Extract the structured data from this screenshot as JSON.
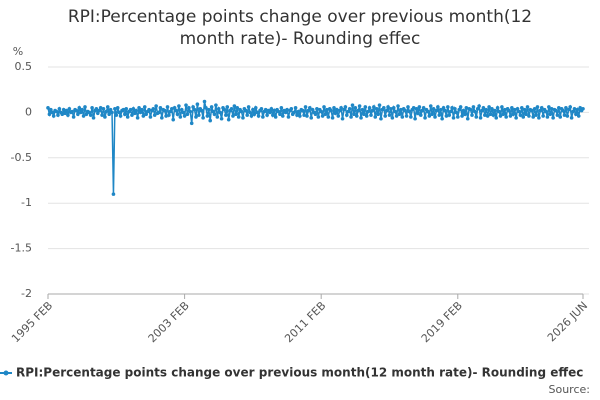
{
  "chart_data": {
    "type": "line",
    "title": "RPI:Percentage points change over previous month(12 month rate)- Rounding effec",
    "y_label": "%",
    "source": "Source:",
    "categories": [
      "1995 FEB",
      null,
      null,
      null,
      null,
      null,
      null,
      null,
      null,
      null,
      null,
      null,
      null,
      null,
      null,
      null,
      null,
      null,
      null,
      null,
      null,
      null,
      null,
      null,
      null,
      null,
      null,
      null,
      null,
      null,
      null,
      null,
      null,
      null,
      null,
      null,
      null,
      null,
      null,
      null,
      null,
      null,
      null,
      null,
      null,
      null,
      null,
      null,
      null,
      null,
      null,
      null,
      null,
      null,
      null,
      null,
      null,
      null,
      null,
      null,
      null,
      null,
      null,
      null,
      null,
      null,
      null,
      null,
      null,
      null,
      null,
      null,
      null,
      null,
      null,
      null,
      null,
      null,
      null,
      null,
      null,
      null,
      null,
      null,
      null,
      null,
      null,
      null,
      null,
      null,
      null,
      null,
      null,
      null,
      null,
      null,
      "2003 FEB",
      null,
      null,
      null,
      null,
      null,
      null,
      null,
      null,
      null,
      null,
      null,
      null,
      null,
      null,
      null,
      null,
      null,
      null,
      null,
      null,
      null,
      null,
      null,
      null,
      null,
      null,
      null,
      null,
      null,
      null,
      null,
      null,
      null,
      null,
      null,
      null,
      null,
      null,
      null,
      null,
      null,
      null,
      null,
      null,
      null,
      null,
      null,
      null,
      null,
      null,
      null,
      null,
      null,
      null,
      null,
      null,
      null,
      null,
      null,
      null,
      null,
      null,
      null,
      null,
      null,
      null,
      null,
      null,
      null,
      null,
      null,
      null,
      null,
      null,
      null,
      null,
      null,
      null,
      null,
      null,
      null,
      null,
      null,
      null,
      null,
      null,
      null,
      null,
      null,
      null,
      null,
      null,
      null,
      null,
      null,
      "2011 FEB",
      null,
      null,
      null,
      null,
      null,
      null,
      null,
      null,
      null,
      null,
      null,
      null,
      null,
      null,
      null,
      null,
      null,
      null,
      null,
      null,
      null,
      null,
      null,
      null,
      null,
      null,
      null,
      null,
      null,
      null,
      null,
      null,
      null,
      null,
      null,
      null,
      null,
      null,
      null,
      null,
      null,
      null,
      null,
      null,
      null,
      null,
      null,
      null,
      null,
      null,
      null,
      null,
      null,
      null,
      null,
      null,
      null,
      null,
      null,
      null,
      null,
      null,
      null,
      null,
      null,
      null,
      null,
      null,
      null,
      null,
      null,
      null,
      null,
      null,
      null,
      null,
      null,
      null,
      null,
      null,
      null,
      null,
      null,
      null,
      null,
      null,
      null,
      null,
      null,
      null,
      null,
      null,
      null,
      null,
      null,
      "2019 FEB",
      null,
      null,
      null,
      null,
      null,
      null,
      null,
      null,
      null,
      null,
      null,
      null,
      null,
      null,
      null,
      null,
      null,
      null,
      null,
      null,
      null,
      null,
      null,
      null,
      null,
      null,
      null,
      null,
      null,
      null,
      null,
      null,
      null,
      null,
      null,
      null,
      null,
      null,
      null,
      null,
      null,
      null,
      null,
      null,
      null,
      null,
      null,
      null,
      null,
      null,
      null,
      null,
      null,
      null,
      null,
      null,
      null,
      null,
      null,
      null,
      null,
      null,
      null,
      null,
      null,
      null,
      null,
      null,
      null,
      null,
      null,
      null,
      null,
      null,
      null,
      null,
      null,
      null,
      null,
      null,
      null,
      null,
      null,
      null,
      null,
      null,
      null,
      "2026 JUN"
    ],
    "series": [
      {
        "name": "RPI:Percentage points change over previous month(12 month rate)- Rounding effec",
        "color": "#1f87c6",
        "values": [
          0.05,
          -0.02,
          0.03,
          0,
          -0.04,
          0.02,
          0.01,
          -0.03,
          0.04,
          0,
          -0.02,
          0.03,
          -0.01,
          0.02,
          -0.03,
          0.04,
          0,
          0.01,
          -0.05,
          0.03,
          0.02,
          -0.02,
          0.05,
          0,
          0.03,
          -0.04,
          0.06,
          -0.02,
          0.01,
          0,
          -0.03,
          0.05,
          -0.06,
          0.02,
          0.04,
          -0.01,
          0.02,
          0.05,
          -0.03,
          0.04,
          -0.05,
          0.01,
          0.06,
          -0.02,
          0.03,
          0,
          -0.9,
          0.04,
          -0.03,
          0.05,
          0,
          -0.04,
          0.02,
          0.03,
          -0.02,
          0.04,
          -0.05,
          0.01,
          0.03,
          -0.03,
          0.04,
          -0.01,
          0.02,
          -0.06,
          0.05,
          0,
          0.03,
          -0.04,
          0.06,
          -0.02,
          0.01,
          0.03,
          -0.05,
          0.02,
          0.04,
          -0.03,
          0.07,
          -0.01,
          0,
          0.05,
          -0.06,
          0.03,
          0.02,
          -0.04,
          0.06,
          -0.03,
          0.01,
          0.04,
          -0.08,
          0.05,
          0.02,
          -0.02,
          0.07,
          -0.05,
          0.03,
          0,
          -0.04,
          0.08,
          -0.02,
          0.05,
          0.01,
          -0.12,
          0.06,
          0.03,
          -0.05,
          0.09,
          -0.03,
          0.04,
          0.02,
          -0.06,
          0.12,
          0.05,
          -0.04,
          0.03,
          -0.09,
          0.06,
          0.01,
          -0.02,
          0.08,
          -0.05,
          0.04,
          0,
          -0.07,
          0.05,
          0.03,
          -0.03,
          0.06,
          -0.08,
          0.02,
          0.04,
          -0.04,
          0.07,
          -0.02,
          0.05,
          -0.05,
          0.03,
          0.01,
          -0.06,
          0.04,
          0.02,
          -0.03,
          0.06,
          0,
          -0.04,
          0.03,
          -0.02,
          0.05,
          0,
          -0.04,
          0.02,
          0.04,
          -0.05,
          0.01,
          0.03,
          -0.03,
          0.02,
          0,
          0.04,
          -0.03,
          0.02,
          -0.05,
          0.03,
          0.01,
          -0.02,
          0.05,
          -0.04,
          0.02,
          0,
          0.03,
          -0.05,
          0.02,
          0.04,
          -0.02,
          0,
          0.05,
          -0.03,
          0.01,
          -0.04,
          0.03,
          0.02,
          -0.03,
          0.06,
          -0.04,
          0.02,
          0.05,
          -0.06,
          0.03,
          0,
          -0.02,
          0.04,
          -0.05,
          0.03,
          0.01,
          -0.04,
          0.06,
          -0.02,
          0.03,
          -0.05,
          0.04,
          0.02,
          -0.06,
          0.05,
          -0.01,
          0.03,
          -0.04,
          0.02,
          0.05,
          -0.07,
          0.03,
          0.06,
          -0.03,
          0.01,
          0.04,
          -0.05,
          0.08,
          -0.02,
          0.05,
          -0.04,
          0.02,
          0.07,
          -0.06,
          0.03,
          -0.02,
          0.06,
          -0.04,
          0.01,
          0.05,
          -0.03,
          0.02,
          0.06,
          -0.05,
          0.04,
          -0.02,
          0.08,
          -0.07,
          0.03,
          0.05,
          -0.04,
          0.02,
          0.06,
          -0.03,
          0.04,
          -0.06,
          0.05,
          0.01,
          -0.04,
          0.07,
          -0.02,
          0.03,
          -0.05,
          0.04,
          0.02,
          -0.04,
          0.06,
          0.01,
          -0.05,
          0.03,
          0.05,
          -0.07,
          0.04,
          -0.01,
          0.06,
          -0.03,
          0.02,
          0.05,
          -0.06,
          0.03,
          0.01,
          -0.04,
          0.07,
          -0.02,
          0.04,
          -0.05,
          0.02,
          0.06,
          -0.03,
          0.03,
          -0.07,
          0.05,
          0.02,
          -0.04,
          0.06,
          -0.03,
          0.01,
          0.05,
          -0.06,
          0.04,
          0,
          -0.05,
          0.03,
          0.06,
          -0.04,
          0.02,
          -0.02,
          0.05,
          -0.07,
          0.04,
          0.03,
          -0.03,
          0.06,
          0.01,
          -0.05,
          0.04,
          0.07,
          -0.06,
          0.02,
          0.05,
          -0.03,
          0.03,
          -0.04,
          0.06,
          -0.02,
          0.04,
          -0.03,
          0.02,
          -0.06,
          0.05,
          0.01,
          -0.04,
          0.06,
          -0.02,
          0.03,
          -0.05,
          0.04,
          0.02,
          -0.04,
          0.05,
          -0.02,
          0.03,
          -0.06,
          0.04,
          0.01,
          -0.03,
          0.05,
          -0.05,
          0.03,
          -0.02,
          0.06,
          -0.04,
          0.03,
          0.02,
          -0.05,
          0.04,
          -0.03,
          0.06,
          -0.06,
          0.02,
          0.05,
          -0.04,
          0.03,
          0.01,
          -0.05,
          0.06,
          -0.02,
          0.04,
          -0.06,
          0.03,
          0.02,
          -0.03,
          0.05,
          -0.05,
          0.04,
          0.02,
          -0.03,
          0.05,
          -0.04,
          0.03,
          0.06,
          -0.06,
          0.01,
          0.04,
          -0.02,
          0.03,
          -0.04,
          0.05,
          0.02,
          0.04
        ]
      }
    ],
    "ylim": [
      -2,
      0.5
    ],
    "yticks": [
      0.5,
      0,
      -0.5,
      -1,
      -1.5,
      -2
    ],
    "grid": true
  }
}
